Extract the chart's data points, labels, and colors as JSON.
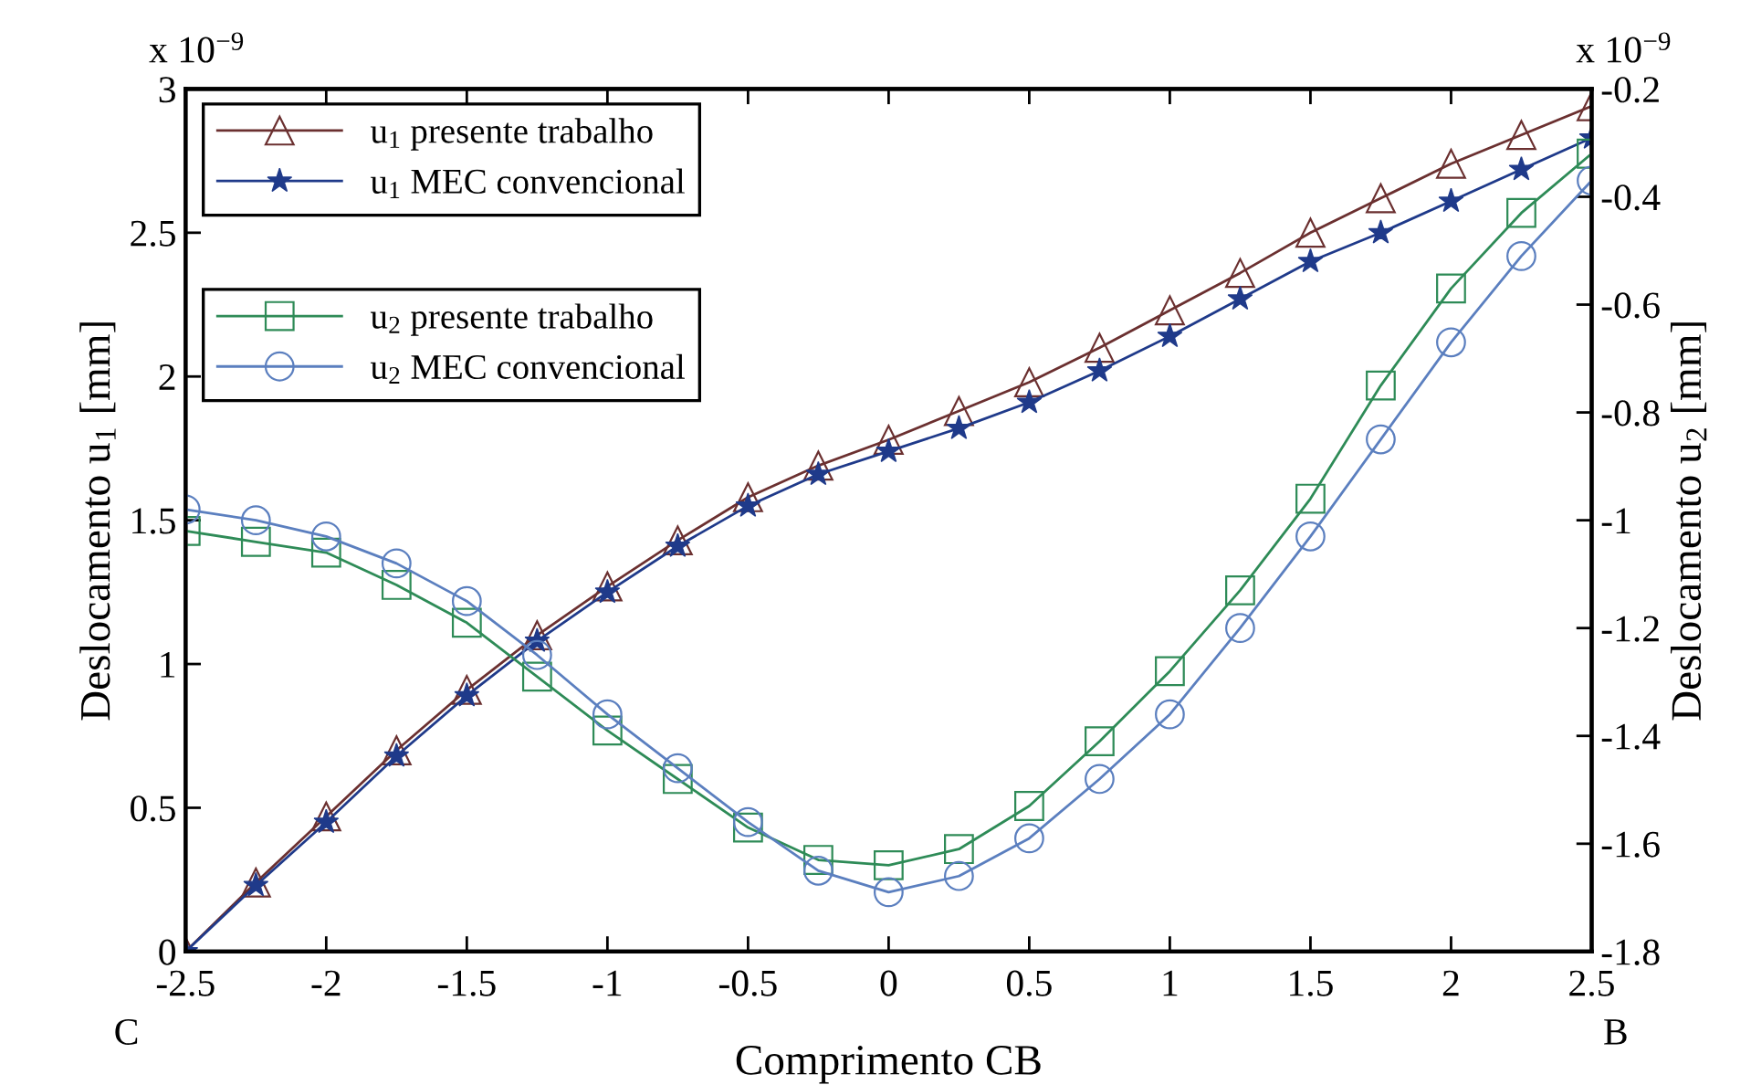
{
  "chart_data": {
    "type": "line",
    "xlabel": "Comprimento CB",
    "ylabel": "Deslocamento u$_{1}$ [mm]",
    "y2label": "Deslocamento u$_{2}$ [mm]",
    "annotations": [
      "x 10$^{−9}$",
      "x 10$^{−9}$",
      "C",
      "B"
    ],
    "xlim": [
      -2.5,
      2.5
    ],
    "xticks": [
      -2.5,
      -2,
      -1.5,
      -1,
      -0.5,
      0,
      0.5,
      1,
      1.5,
      2,
      2.5
    ],
    "ylim": [
      0,
      3
    ],
    "yticks": [
      0,
      0.5,
      1,
      1.5,
      2,
      2.5,
      3
    ],
    "y2lim": [
      -1.8,
      -0.2
    ],
    "y2ticks": [
      -1.8,
      -1.6,
      -1.4,
      -1.2,
      -1,
      -0.8,
      -0.6,
      -0.4,
      -0.2
    ],
    "x": [
      -2.5,
      -2.25,
      -2,
      -1.75,
      -1.5,
      -1.25,
      -1,
      -0.75,
      -0.5,
      -0.25,
      0,
      0.25,
      0.5,
      0.75,
      1,
      1.25,
      1.5,
      1.75,
      2,
      2.25,
      2.5
    ],
    "legend": "top left",
    "grid": false,
    "line_style": "solid",
    "series": [
      {
        "name": "u$_{1}$ presente trabalho",
        "color": "#6b3030",
        "marker": "triangle",
        "values": [
          0,
          0.24,
          0.47,
          0.7,
          0.91,
          1.1,
          1.27,
          1.43,
          1.58,
          1.69,
          1.78,
          1.88,
          1.98,
          2.1,
          2.23,
          2.36,
          2.5,
          2.62,
          2.74,
          2.84,
          2.94
        ]
      },
      {
        "name": "u$_{1}$ MEC convencional",
        "color": "#1f3a8a",
        "marker": "star",
        "values": [
          0,
          0.23,
          0.45,
          0.68,
          0.89,
          1.08,
          1.25,
          1.41,
          1.55,
          1.66,
          1.74,
          1.82,
          1.91,
          2.02,
          2.14,
          2.27,
          2.4,
          2.5,
          2.61,
          2.72,
          2.83
        ]
      },
      {
        "name": "u$_{2}$ presente trabalho",
        "color": "#2e8b57",
        "marker": "square",
        "axis": "y2",
        "values": [
          -1.02,
          -1.04,
          -1.06,
          -1.12,
          -1.19,
          -1.29,
          -1.39,
          -1.48,
          -1.57,
          -1.63,
          -1.64,
          -1.61,
          -1.53,
          -1.41,
          -1.28,
          -1.13,
          -0.96,
          -0.75,
          -0.57,
          -0.43,
          -0.32
        ]
      },
      {
        "name": "u$_{2}$ MEC convencional",
        "color": "#5b7fbf",
        "marker": "circle",
        "axis": "y2",
        "values": [
          -0.98,
          -1.0,
          -1.03,
          -1.08,
          -1.15,
          -1.25,
          -1.36,
          -1.46,
          -1.56,
          -1.65,
          -1.69,
          -1.66,
          -1.59,
          -1.48,
          -1.36,
          -1.2,
          -1.03,
          -0.85,
          -0.67,
          -0.51,
          -0.37
        ]
      }
    ]
  }
}
